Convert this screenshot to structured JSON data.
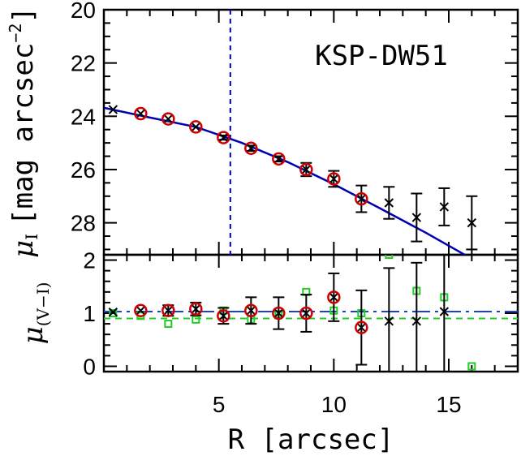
{
  "chart_data": [
    {
      "type": "scatter",
      "title": "KSP-DW51",
      "ylabel": "μI [mag arcsec⁻²]",
      "ylabel_parts": {
        "mu": "μ",
        "sub": "I",
        "bracket": "[mag arcsec",
        "sup": "−2",
        "close": "]"
      },
      "xlim": [
        0,
        18
      ],
      "ylim": [
        29.2,
        20
      ],
      "y_ticks": [
        20,
        22,
        24,
        26,
        28
      ],
      "y_tick_labels": [
        "20",
        "22",
        "24",
        "26",
        "28"
      ],
      "effective_radius_line_x": 5.5,
      "series": [
        {
          "marker": "x",
          "color": "#000000",
          "x": [
            0.4,
            1.6,
            2.8,
            4.0,
            5.2,
            6.4,
            7.6,
            8.8,
            10.0,
            11.2,
            12.4,
            13.6,
            14.8,
            16.0
          ],
          "y": [
            23.75,
            23.9,
            24.1,
            24.4,
            24.8,
            25.2,
            25.6,
            26.0,
            26.35,
            27.1,
            27.25,
            27.8,
            27.4,
            28.0
          ],
          "yerr": [
            0.05,
            0.05,
            0.05,
            0.05,
            0.08,
            0.1,
            0.1,
            0.25,
            0.3,
            0.5,
            0.6,
            0.9,
            0.7,
            1.0
          ]
        },
        {
          "marker": "circle",
          "color": "#cc0000",
          "x": [
            1.6,
            2.8,
            4.0,
            5.2,
            6.4,
            7.6,
            8.8,
            10.0,
            11.2
          ],
          "y": [
            23.9,
            24.1,
            24.4,
            24.8,
            25.2,
            25.6,
            26.0,
            26.35,
            27.1
          ]
        },
        {
          "marker": "line",
          "color": "#0000b0",
          "x": [
            0,
            2,
            4,
            6,
            8,
            10,
            12,
            14,
            16
          ],
          "y": [
            23.68,
            24.05,
            24.4,
            25.0,
            25.72,
            26.55,
            27.45,
            28.37,
            29.35
          ]
        }
      ]
    },
    {
      "type": "scatter",
      "xlabel": "R [arcsec]",
      "ylabel": "μ(V−I)",
      "ylabel_parts": {
        "mu": "μ",
        "sub": "(V−I)"
      },
      "xlim": [
        0,
        18
      ],
      "ylim": [
        -0.1,
        2.1
      ],
      "x_ticks": [
        5,
        10,
        15
      ],
      "x_tick_labels": [
        "5",
        "10",
        "15"
      ],
      "y_ticks": [
        0,
        1,
        2
      ],
      "y_tick_labels": [
        "0",
        "1",
        "2"
      ],
      "reference_lines": [
        {
          "name": "blue-dashdot",
          "y": 1.03,
          "color": "#1a3fd1"
        },
        {
          "name": "green-dashed",
          "y": 0.9,
          "color": "#22cc22"
        }
      ],
      "series": [
        {
          "marker": "x",
          "color": "#000000",
          "x": [
            0.4,
            1.6,
            2.8,
            4.0,
            5.2,
            6.4,
            7.6,
            8.8,
            10.0,
            11.2,
            12.4,
            13.6,
            14.8
          ],
          "y": [
            1.02,
            1.05,
            1.05,
            1.08,
            0.95,
            1.05,
            1.0,
            1.0,
            1.3,
            0.73,
            0.85,
            0.85,
            1.03
          ],
          "yerr": [
            0.05,
            0.05,
            0.1,
            0.12,
            0.15,
            0.25,
            0.3,
            0.35,
            0.45,
            0.7,
            1.0,
            1.1,
            1.2
          ]
        },
        {
          "marker": "circle",
          "color": "#cc0000",
          "x": [
            1.6,
            2.8,
            4.0,
            5.2,
            6.4,
            7.6,
            8.8,
            10.0,
            11.2
          ],
          "y": [
            1.05,
            1.05,
            1.08,
            0.95,
            1.05,
            1.0,
            1.0,
            1.3,
            0.73
          ]
        },
        {
          "marker": "square",
          "color": "#22cc22",
          "x": [
            0.4,
            1.6,
            2.8,
            4.0,
            5.2,
            6.4,
            7.6,
            8.8,
            10.0,
            11.2,
            12.4,
            13.6,
            14.8,
            16.0
          ],
          "y": [
            1.0,
            0.95,
            0.8,
            0.88,
            1.05,
            0.88,
            0.98,
            1.4,
            1.05,
            1.0,
            2.1,
            1.42,
            1.3,
            0.0
          ]
        }
      ]
    }
  ]
}
